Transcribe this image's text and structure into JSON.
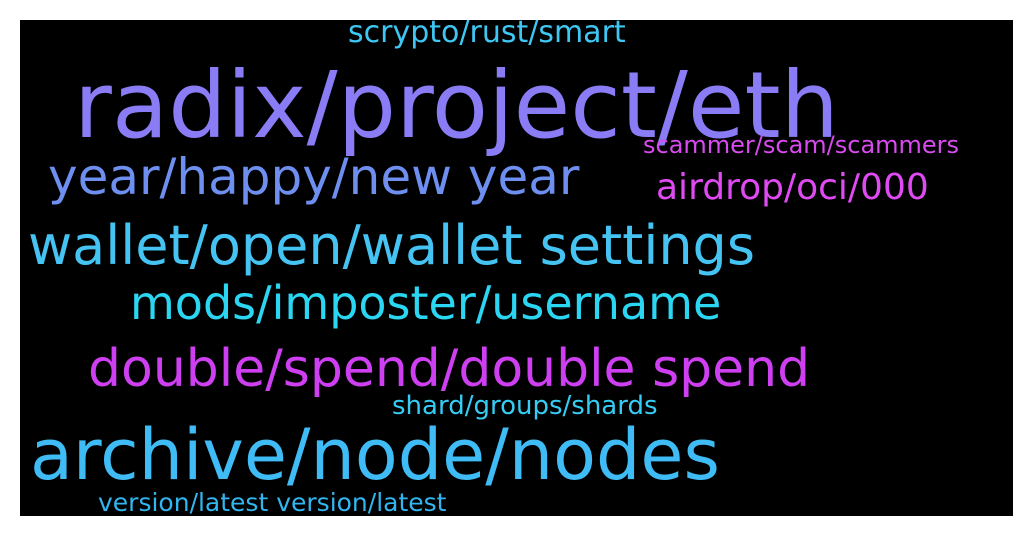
{
  "wordcloud": {
    "background_color": "#000000",
    "words": [
      {
        "id": "scrypto",
        "text": "scrypto/rust/smart",
        "color": "#3fc7f4"
      },
      {
        "id": "radix",
        "text": "radix/project/eth",
        "color": "#8a7cf4"
      },
      {
        "id": "scammer",
        "text": "scammer/scam/scammers",
        "color": "#d94af0"
      },
      {
        "id": "year",
        "text": "year/happy/new year",
        "color": "#6e8ff0"
      },
      {
        "id": "airdrop",
        "text": "airdrop/oci/000",
        "color": "#e04af2"
      },
      {
        "id": "wallet",
        "text": "wallet/open/wallet settings",
        "color": "#45c4f4"
      },
      {
        "id": "mods",
        "text": "mods/imposter/username",
        "color": "#2ad6f2"
      },
      {
        "id": "double",
        "text": "double/spend/double spend",
        "color": "#cd3ff0"
      },
      {
        "id": "shard",
        "text": "shard/groups/shards",
        "color": "#35cdf4"
      },
      {
        "id": "archive",
        "text": "archive/node/nodes",
        "color": "#3fbcf5"
      },
      {
        "id": "version",
        "text": "version/latest version/latest",
        "color": "#32b6f0"
      }
    ]
  }
}
